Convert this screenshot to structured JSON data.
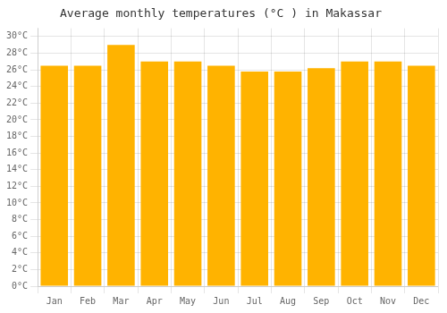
{
  "chart_data": {
    "type": "bar",
    "title": "Average monthly temperatures (°C ) in Makassar",
    "categories": [
      "Jan",
      "Feb",
      "Mar",
      "Apr",
      "May",
      "Jun",
      "Jul",
      "Aug",
      "Sep",
      "Oct",
      "Nov",
      "Dec"
    ],
    "values": [
      26.5,
      26.5,
      29.0,
      27.0,
      27.0,
      26.5,
      25.8,
      25.8,
      26.2,
      27.0,
      27.0,
      26.5
    ],
    "color": "#FFB300",
    "ylim": [
      0,
      31
    ],
    "yticks": [
      {
        "value": 0,
        "label": "0°C"
      },
      {
        "value": 2,
        "label": "2°C"
      },
      {
        "value": 4,
        "label": "4°C"
      },
      {
        "value": 6,
        "label": "6°C"
      },
      {
        "value": 8,
        "label": "8°C"
      },
      {
        "value": 10,
        "label": "10°C"
      },
      {
        "value": 12,
        "label": "12°C"
      },
      {
        "value": 14,
        "label": "14°C"
      },
      {
        "value": 16,
        "label": "16°C"
      },
      {
        "value": 18,
        "label": "18°C"
      },
      {
        "value": 20,
        "label": "20°C"
      },
      {
        "value": 22,
        "label": "22°C"
      },
      {
        "value": 24,
        "label": "24°C"
      },
      {
        "value": 26,
        "label": "26°C"
      },
      {
        "value": 28,
        "label": "28°C"
      },
      {
        "value": 30,
        "label": "30°C"
      }
    ],
    "grid": true
  }
}
